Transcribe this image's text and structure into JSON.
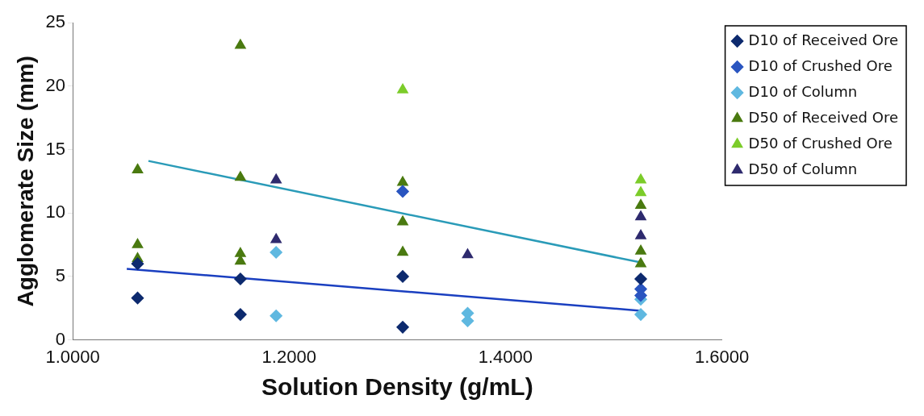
{
  "chart_data": {
    "type": "scatter",
    "xlabel": "Solution Density (g/mL)",
    "ylabel": "Agglomerate Size (mm)",
    "xlim": [
      1,
      1.6
    ],
    "xticks": [
      {
        "value": 1,
        "label": "1.0000"
      },
      {
        "value": 1.2,
        "label": "1.2000"
      },
      {
        "value": 1.4,
        "label": "1.4000"
      },
      {
        "value": 1.6,
        "label": "1.6000"
      }
    ],
    "ylim": [
      0,
      25
    ],
    "yticks": [
      0,
      5,
      10,
      15,
      20,
      25
    ],
    "grid": false,
    "legend": "top right",
    "series": [
      {
        "name": "D10 of Received Ore",
        "color": "#0d2a6e",
        "marker": "diamond",
        "x": [
          1.06,
          1.06,
          1.155,
          1.155,
          1.305,
          1.305,
          1.525
        ],
        "values": [
          3.3,
          6.0,
          4.8,
          2.0,
          5.0,
          1.0,
          4.8
        ]
      },
      {
        "name": "D10 of Crushed Ore",
        "color": "#2a55c0",
        "marker": "diamond",
        "x": [
          1.305,
          1.525,
          1.525
        ],
        "values": [
          11.7,
          4.0,
          3.5
        ]
      },
      {
        "name": "D10 of Column",
        "color": "#5fb8e0",
        "marker": "diamond",
        "x": [
          1.188,
          1.188,
          1.365,
          1.365,
          1.525,
          1.525
        ],
        "values": [
          6.9,
          1.9,
          2.1,
          1.5,
          3.2,
          2.0
        ]
      },
      {
        "name": "D50 of Received Ore",
        "color": "#4a7a10",
        "marker": "triangle",
        "x": [
          1.06,
          1.06,
          1.06,
          1.155,
          1.155,
          1.155,
          1.155,
          1.305,
          1.305,
          1.305,
          1.525,
          1.525,
          1.525
        ],
        "values": [
          13.4,
          7.5,
          6.4,
          23.2,
          12.8,
          6.8,
          6.2,
          12.4,
          9.3,
          6.9,
          10.6,
          7.0,
          6.0
        ]
      },
      {
        "name": "D50 of Crushed Ore",
        "color": "#7ccc2a",
        "marker": "triangle",
        "x": [
          1.305,
          1.525,
          1.525
        ],
        "values": [
          19.7,
          12.6,
          11.6
        ]
      },
      {
        "name": "D50 of Column",
        "color": "#2e2a6e",
        "marker": "triangle",
        "x": [
          1.188,
          1.188,
          1.365,
          1.525,
          1.525
        ],
        "values": [
          12.6,
          7.9,
          6.7,
          9.7,
          8.2
        ]
      },
      {
        "type": "line",
        "color": "#1a3fc0",
        "marker": "none",
        "x": [
          1.05,
          1.525
        ],
        "values": [
          5.6,
          2.3
        ]
      },
      {
        "type": "line",
        "color": "#2a9bb8",
        "marker": "none",
        "x": [
          1.07,
          1.525
        ],
        "values": [
          14.1,
          6.1
        ]
      }
    ]
  }
}
